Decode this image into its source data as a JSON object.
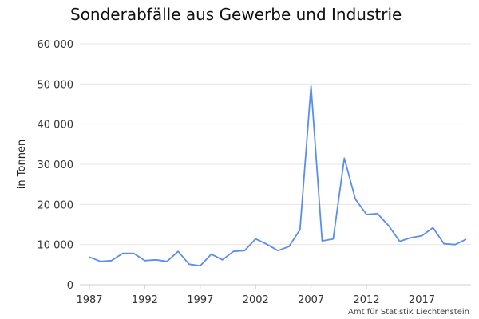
{
  "chart_data": {
    "type": "line",
    "title": "Sonderabfälle aus Gewerbe und Industrie",
    "ylabel": "in Tonnen",
    "xlabel": "",
    "source": "Amt für Statistik Liechtenstein",
    "ylim": [
      0,
      60000
    ],
    "xlim": [
      1987,
      2021
    ],
    "y_ticks": [
      0,
      10000,
      20000,
      30000,
      40000,
      50000,
      60000
    ],
    "y_tick_labels": [
      "0",
      "10 000",
      "20 000",
      "30 000",
      "40 000",
      "50 000",
      "60 000"
    ],
    "x_ticks": [
      1987,
      1992,
      1997,
      2002,
      2007,
      2012,
      2017
    ],
    "x_tick_labels": [
      "1987",
      "1992",
      "1997",
      "2002",
      "2007",
      "2012",
      "2017"
    ],
    "grid": true,
    "series_color": "#5b8def",
    "series": [
      {
        "x": [
          1987,
          1988,
          1989,
          1990,
          1991,
          1992,
          1993,
          1994,
          1995,
          1996,
          1997,
          1998,
          1999,
          2000,
          2001,
          2002,
          2003,
          2004,
          2005,
          2006,
          2007,
          2008,
          2009,
          2010,
          2011,
          2012,
          2013,
          2014,
          2015,
          2016,
          2017,
          2018,
          2019,
          2020,
          2021
        ],
        "values": [
          6900,
          5800,
          6000,
          7800,
          7800,
          6000,
          6200,
          5800,
          8300,
          5100,
          4700,
          7600,
          6200,
          8300,
          8500,
          11400,
          10100,
          8500,
          9500,
          13700,
          49500,
          10900,
          11400,
          31500,
          21300,
          17500,
          17700,
          14700,
          10800,
          11700,
          12200,
          14200,
          10200,
          10000,
          11300
        ]
      }
    ]
  }
}
